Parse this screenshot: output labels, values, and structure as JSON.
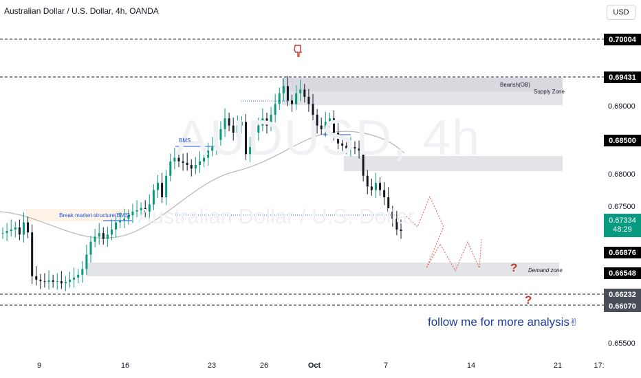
{
  "header": {
    "title": "Australian Dollar / U.S. Dollar, 4h, OANDA",
    "currency_button": "USD"
  },
  "watermark": {
    "symbol": "AUDUSD, 4h",
    "name": "Australian Dollar / U.S. Dollar"
  },
  "price_axis": {
    "ticks": [
      "0.69000",
      "0.68000",
      "0.67500",
      "0.65500"
    ],
    "boxed_levels": [
      "0.70004",
      "0.69431",
      "0.68500",
      "0.66876",
      "0.66548",
      "0.66232",
      "0.66070"
    ],
    "current_price": "0.67334",
    "countdown": "48:29"
  },
  "time_axis": {
    "ticks": [
      "9",
      "16",
      "23",
      "26",
      "Oct",
      "7",
      "14",
      "21",
      "17:"
    ]
  },
  "annotations": {
    "bearish_ob": "Bearish(OB)",
    "supply_zone": "Supply Zone",
    "demand_zone": "Demand zone",
    "bms": "BMS",
    "break_market_structure": "Break market structure(BMS)",
    "follow_text": "follow me for more analysis",
    "follow_icon": "victory-hand-icon",
    "question_mark": "?",
    "pointing_icon": "pointing-down-hand-icon"
  },
  "colors": {
    "bull": "#089981",
    "bear": "#131722",
    "zone": "#d9dadf",
    "projection": "#e05a4f",
    "bms_line": "#1e53e5",
    "ma_line": "#b2b5be"
  },
  "chart_data": {
    "type": "candlestick",
    "symbol": "AUDUSD",
    "timeframe": "4h",
    "ylim": [
      0.6545,
      0.7025
    ],
    "x_ticks": [
      "9",
      "16",
      "23",
      "26",
      "Oct",
      "7",
      "14",
      "21",
      "17:"
    ],
    "price_path": [
      0.673,
      0.6733,
      0.6735,
      0.6738,
      0.6728,
      0.6745,
      0.6731,
      0.667,
      0.6665,
      0.6663,
      0.6662,
      0.6664,
      0.6662,
      0.6663,
      0.666,
      0.6662,
      0.6665,
      0.6668,
      0.6672,
      0.668,
      0.67,
      0.6718,
      0.6725,
      0.673,
      0.6722,
      0.6728,
      0.6735,
      0.6745,
      0.6748,
      0.675,
      0.6755,
      0.676,
      0.6762,
      0.6765,
      0.676,
      0.677,
      0.679,
      0.68,
      0.678,
      0.681,
      0.683,
      0.6835,
      0.683,
      0.6828,
      0.6825,
      0.682,
      0.6825,
      0.683,
      0.6835,
      0.6845,
      0.685,
      0.686,
      0.6875,
      0.689,
      0.688,
      0.687,
      0.688,
      0.6885,
      0.684,
      0.685,
      0.687,
      0.688,
      0.689,
      0.688,
      0.6895,
      0.691,
      0.6925,
      0.6935,
      0.6915,
      0.691,
      0.6925,
      0.693,
      0.692,
      0.691,
      0.6895,
      0.688,
      0.6875,
      0.6885,
      0.689,
      0.687,
      0.6855,
      0.6852,
      0.6848,
      0.685,
      0.6848,
      0.6845,
      0.681,
      0.6795,
      0.679,
      0.68,
      0.679,
      0.678,
      0.676,
      0.675,
      0.6735,
      0.6733
    ],
    "moving_average_visible": true,
    "zones": [
      {
        "name": "Bearish(OB)",
        "from": 0.6945,
        "to": 0.6925
      },
      {
        "name": "Supply Zone",
        "from": 0.6925,
        "to": 0.69
      },
      {
        "name": "Resistance band",
        "from": 0.6827,
        "to": 0.6806
      },
      {
        "name": "Demand zone",
        "from": 0.6667,
        "to": 0.6648
      }
    ],
    "horizontal_levels": [
      0.70004,
      0.69431,
      0.66232,
      0.6607
    ],
    "grid": false
  }
}
